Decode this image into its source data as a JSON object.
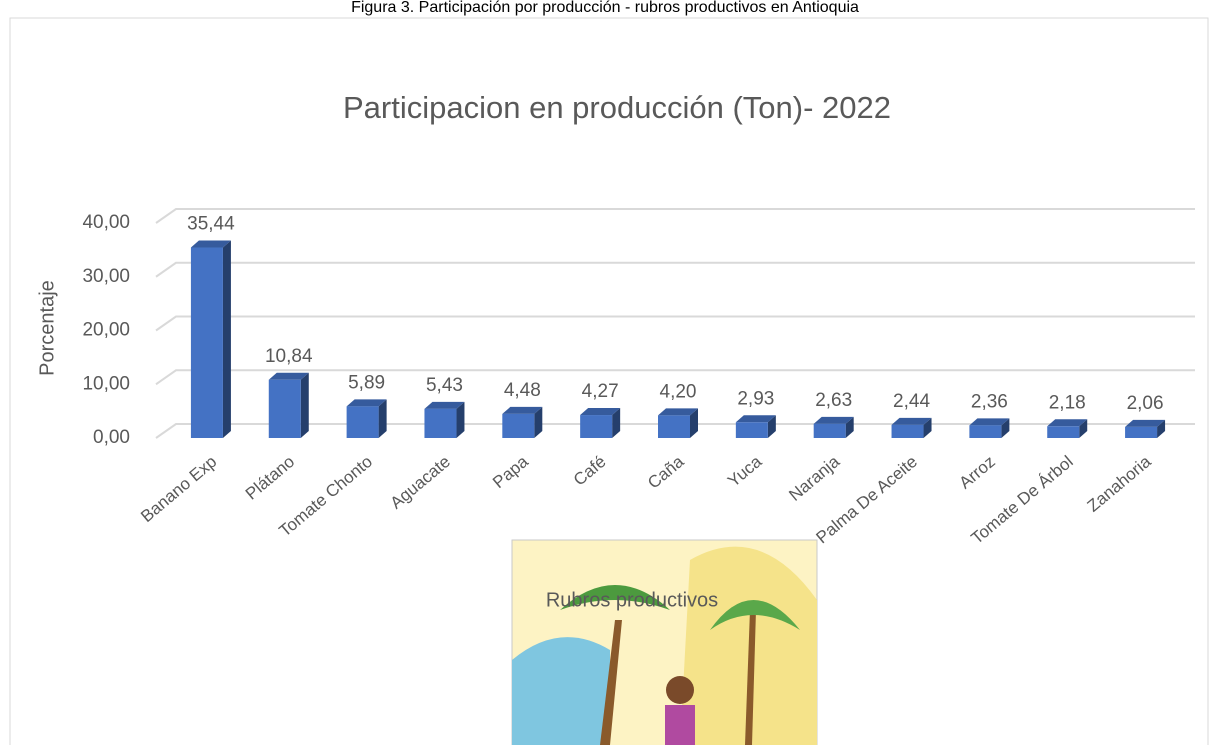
{
  "caption": "Figura 3. Participación por producción - rubros productivos en Antioquia",
  "chart_data": {
    "type": "bar3d",
    "title": "Participacion en producción (Ton)- 2022",
    "y_label": "Porcentaje",
    "x_label": "Rubros productivos",
    "categories": [
      "Banano Exp",
      "Plátano",
      "Tomate Chonto",
      "Aguacate",
      "Papa",
      "Café",
      "Caña",
      "Yuca",
      "Naranja",
      "Palma De Aceite",
      "Arroz",
      "Tomate De Árbol",
      "Zanahoria"
    ],
    "values": [
      35.44,
      10.84,
      5.89,
      5.43,
      4.48,
      4.27,
      4.2,
      2.93,
      2.63,
      2.44,
      2.36,
      2.18,
      2.06
    ],
    "value_labels": [
      "35,44",
      "10,84",
      "5,89",
      "5,43",
      "4,48",
      "4,27",
      "4,20",
      "2,93",
      "2,63",
      "2,44",
      "2,36",
      "2,18",
      "2,06"
    ],
    "color": "#4472c4",
    "ylim": [
      0,
      40
    ],
    "yticks": [
      {
        "value": 0,
        "label": "0,00"
      },
      {
        "value": 10,
        "label": "10,00"
      },
      {
        "value": 20,
        "label": "20,00"
      },
      {
        "value": 30,
        "label": "30,00"
      },
      {
        "value": 40,
        "label": "40,00"
      }
    ],
    "grid": true
  }
}
